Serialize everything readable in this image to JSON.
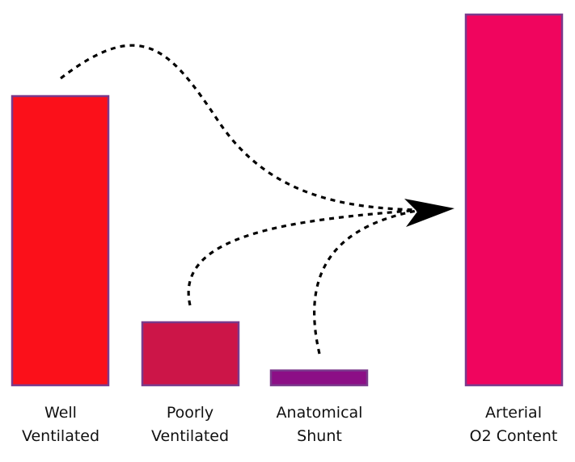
{
  "diagram": {
    "bars": [
      {
        "id": "well",
        "line1": "Well",
        "line2": "Ventilated",
        "color": "#fb101a",
        "level": 0.78
      },
      {
        "id": "poorly",
        "line1": "Poorly",
        "line2": "Ventilated",
        "color": "#cc1548",
        "level": 0.17
      },
      {
        "id": "shunt",
        "line1": "Anatomical",
        "line2": "Shunt",
        "color": "#8c0f86",
        "level": 0.04
      },
      {
        "id": "arterial",
        "line1": "Arterial",
        "line2": "O2 Content",
        "color": "#f0055e",
        "level": 1.0
      }
    ],
    "border_color": "#7a3a8c",
    "arrow_color": "#000000"
  }
}
